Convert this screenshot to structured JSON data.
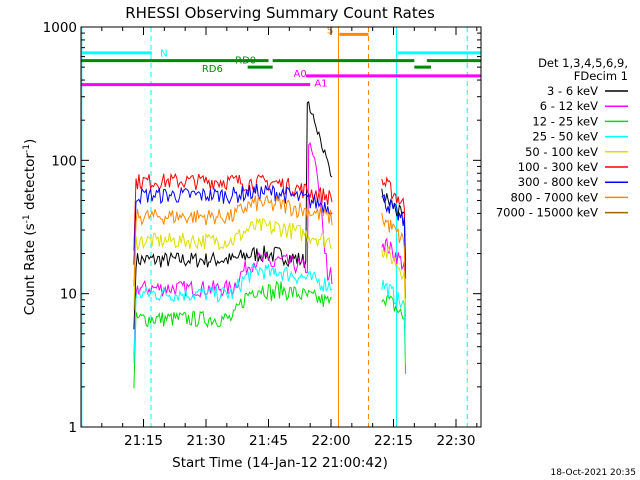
{
  "chart_data": {
    "type": "line",
    "title": "RHESSI Observing Summary Count Rates",
    "xlabel": "Start Time (14-Jan-12 21:00:42)",
    "ylabel_main": "Count Rate (s",
    "ylabel_sup1": "-1",
    "ylabel_mid": " detector",
    "ylabel_sup2": "-1",
    "ylabel_end": ")",
    "yscale": "log",
    "ylim": [
      1,
      1000
    ],
    "xlim_min": [
      0,
      96
    ],
    "x_ticks": [
      {
        "min": 15,
        "label": "21:15"
      },
      {
        "min": 30,
        "label": "21:30"
      },
      {
        "min": 45,
        "label": "21:45"
      },
      {
        "min": 60,
        "label": "22:00"
      },
      {
        "min": 75,
        "label": "22:15"
      },
      {
        "min": 90,
        "label": "22:30"
      }
    ],
    "y_ticks": [
      {
        "v": 1,
        "label": "1"
      },
      {
        "v": 10,
        "label": "10"
      },
      {
        "v": 100,
        "label": "100"
      },
      {
        "v": 1000,
        "label": "1000"
      }
    ],
    "legend_header": [
      "Det 1,3,4,5,6,9,",
      "FDecim 1"
    ],
    "legend_position": "right",
    "timestamp": "18-Oct-2021 20:35",
    "series": [
      {
        "name": "3 - 6 keV",
        "color": "#000000",
        "base": [
          0,
          0,
          0,
          18,
          20
        ],
        "flare": [
          [
            54.6,
            270
          ],
          [
            57,
            160
          ],
          [
            59,
            95
          ],
          [
            60.2,
            75
          ]
        ],
        "post": 55
      },
      {
        "name": "6 - 12 keV",
        "color": "#ff00ff",
        "base": [
          0,
          0,
          0,
          11,
          18
        ],
        "flare": [
          [
            54.8,
            130
          ],
          [
            56,
            100
          ],
          [
            57.5,
            45
          ],
          [
            58.5,
            20
          ]
        ],
        "post": 25
      },
      {
        "name": "12 - 25 keV",
        "color": "#00dd00",
        "base": [
          0,
          0,
          0,
          6.5,
          11
        ],
        "post": 10
      },
      {
        "name": "25 - 50 keV",
        "color": "#00ffff",
        "base": [
          0,
          0,
          0,
          10,
          15
        ],
        "post": 12
      },
      {
        "name": "50 - 100 keV",
        "color": "#dddd00",
        "base": [
          0,
          0,
          0,
          25,
          32
        ],
        "post": 22
      },
      {
        "name": "100 - 300 keV",
        "color": "#ff0000",
        "base": [
          0,
          0,
          0,
          70,
          68
        ],
        "post": 70
      },
      {
        "name": "300 - 800 keV",
        "color": "#0000ff",
        "base": [
          0,
          0,
          0,
          55,
          58
        ],
        "post": 52
      },
      {
        "name": "800 - 7000 keV",
        "color": "#ff8800",
        "base": [
          0,
          0,
          0,
          38,
          48
        ],
        "post": 37
      },
      {
        "name": "7000 - 15000 keV",
        "color": "#996600",
        "base": [
          0,
          0,
          0,
          0,
          0
        ],
        "post": 0
      }
    ],
    "flags": [
      {
        "label": "N",
        "color": "#00ffff",
        "y": 640,
        "segments": [
          [
            0,
            17
          ],
          [
            76,
            96
          ]
        ]
      },
      {
        "label": "RD0",
        "color": "#008800",
        "y": 560,
        "segments": [
          [
            0,
            45
          ],
          [
            46,
            80
          ],
          [
            83,
            96
          ]
        ]
      },
      {
        "label": "RD6",
        "color": "#008800",
        "y": 500,
        "segments": [
          [
            40,
            46
          ],
          [
            80,
            84
          ]
        ]
      },
      {
        "label": "S",
        "color": "#ff8800",
        "y": 880,
        "segments": [
          [
            62,
            69
          ]
        ]
      },
      {
        "label": "A0",
        "color": "#ff00ff",
        "y": 430,
        "segments": [
          [
            54,
            96
          ]
        ]
      },
      {
        "label": "A1",
        "color": "#ff00ff",
        "y": 370,
        "segments": [
          [
            0,
            55
          ]
        ]
      }
    ]
  }
}
